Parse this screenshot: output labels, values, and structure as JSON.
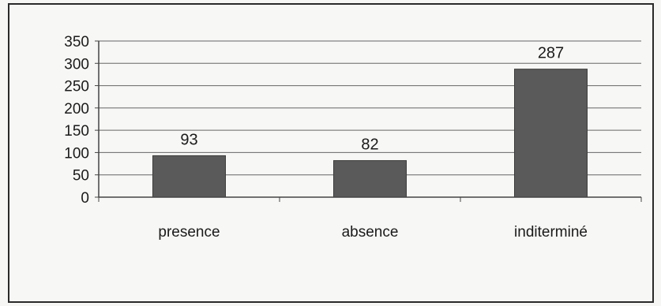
{
  "chart_data": {
    "type": "bar",
    "categories": [
      "presence",
      "absence",
      "inditerminé"
    ],
    "values": [
      93,
      82,
      287
    ],
    "data_labels": [
      "93",
      "82",
      "287"
    ],
    "title": "",
    "xlabel": "",
    "ylabel": "",
    "ylim": [
      0,
      350
    ],
    "yticks": [
      "0",
      "50",
      "100",
      "150",
      "200",
      "250",
      "300",
      "350"
    ],
    "grid": true,
    "legend": "none",
    "bar_color": "#5a5a5a"
  }
}
